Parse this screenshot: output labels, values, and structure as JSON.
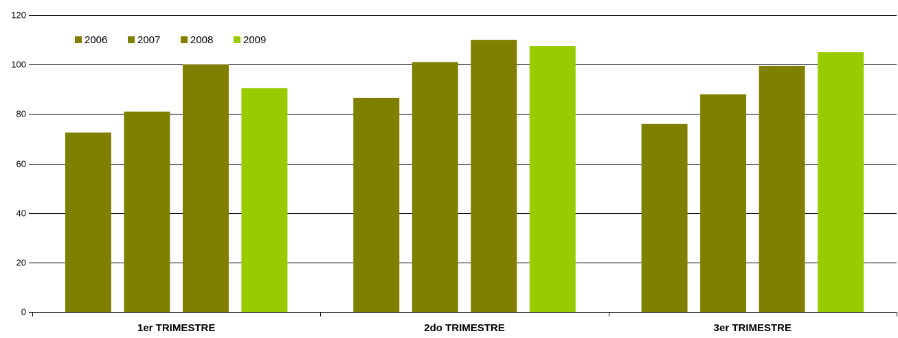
{
  "chart_data": {
    "type": "bar",
    "categories": [
      "1er TRIMESTRE",
      "2do TRIMESTRE",
      "3er TRIMESTRE"
    ],
    "series": [
      {
        "name": "2006",
        "color": "#808000",
        "values": [
          72.5,
          86.5,
          76
        ]
      },
      {
        "name": "2007",
        "color": "#808000",
        "values": [
          81,
          101,
          88
        ]
      },
      {
        "name": "2008",
        "color": "#808000",
        "values": [
          100,
          110,
          99.5
        ]
      },
      {
        "name": "2009",
        "color": "#99cc00",
        "values": [
          90.5,
          107.5,
          105
        ]
      }
    ],
    "title": "",
    "xlabel": "",
    "ylabel": "",
    "ylim": [
      0,
      120
    ],
    "yticks": [
      "0",
      "20",
      "40",
      "60",
      "80",
      "100",
      "120"
    ],
    "grid": true,
    "legend_position": "top-left"
  }
}
